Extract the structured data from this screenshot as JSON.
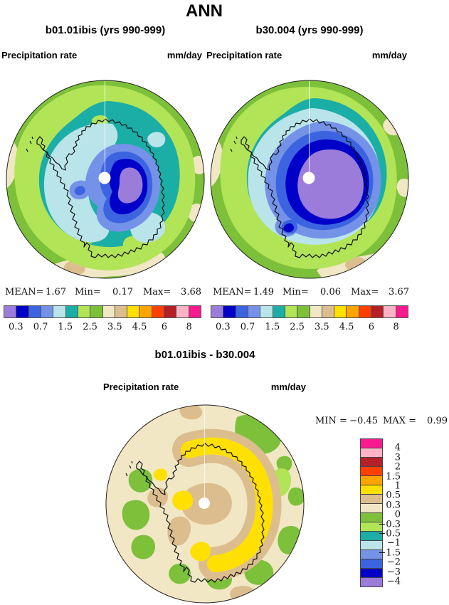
{
  "title": "ANN",
  "palette": {
    "purple": "#9B7CDB",
    "darkblue": "#0000C8",
    "royal": "#3D64E0",
    "cornflower": "#7493E8",
    "palecyan": "#B9E4EA",
    "teal": "#1BAEA6",
    "lightgreen": "#B2E457",
    "applegreen": "#7DC03A",
    "cream": "#F1E7C5",
    "tan": "#DCBE8E",
    "yellow": "#FFE000",
    "orange": "#FFA400",
    "redorange": "#FF4000",
    "brick": "#B42026",
    "pink": "#FFB3C6",
    "magenta": "#F91A8F",
    "coast": "#111111",
    "circle_edge": "#222222",
    "pole": "#ffffff"
  },
  "panels": {
    "left": {
      "header": "b01.01ibis (yrs 990-999)",
      "var_label": "Precipitation rate",
      "units": "mm/day",
      "stats": {
        "mean_label": "MEAN=",
        "mean": "1.67",
        "min_label": "Min=",
        "min": "0.17",
        "max_label": "Max=",
        "max": "3.68"
      }
    },
    "right": {
      "header": "b30.004 (yrs 990-999)",
      "var_label": "Precipitation rate",
      "units": "mm/day",
      "stats": {
        "mean_label": "MEAN=",
        "mean": "1.49",
        "min_label": "Min=",
        "min": "0.06",
        "max_label": "Max=",
        "max": "3.67"
      }
    },
    "diff": {
      "header": "b01.01ibis - b30.004",
      "var_label": "Precipitation rate",
      "units": "mm/day",
      "min_label": "MIN =",
      "min": "−0.45",
      "max_label": "MAX =",
      "max": "0.99"
    }
  },
  "colorbar": {
    "colors": [
      "purple",
      "darkblue",
      "royal",
      "cornflower",
      "palecyan",
      "teal",
      "lightgreen",
      "applegreen",
      "cream",
      "tan",
      "yellow",
      "orange",
      "redorange",
      "brick",
      "pink",
      "magenta"
    ],
    "tick_labels": [
      "0.3",
      "0.7",
      "1.5",
      "2.5",
      "3.5",
      "4.5",
      "6",
      "8"
    ],
    "tick_positions": [
      1,
      3,
      5,
      7,
      9,
      11,
      13,
      15
    ]
  },
  "colorbar_v": {
    "colors": [
      "magenta",
      "pink",
      "brick",
      "redorange",
      "orange",
      "yellow",
      "tan",
      "cream",
      "applegreen",
      "lightgreen",
      "teal",
      "palecyan",
      "cornflower",
      "royal",
      "darkblue",
      "purple"
    ],
    "labels": [
      "4",
      "3",
      "2",
      "1.5",
      "1",
      "0.5",
      "0.3",
      "0",
      "−0.3",
      "−0.5",
      "−1",
      "−1.5",
      "−2",
      "−3",
      "−4"
    ]
  },
  "chart_data": [
    {
      "type": "heatmap",
      "subtype": "south-polar-stereographic filled contour map",
      "title": "b01.01ibis (yrs 990-999)",
      "variable": "Precipitation rate",
      "units": "mm/day",
      "stats": {
        "mean": 1.67,
        "min": 0.17,
        "max": 3.68
      },
      "contour_levels": [
        0.3,
        0.5,
        0.7,
        1,
        1.5,
        2,
        2.5,
        3,
        3.5,
        4,
        4.5,
        5,
        6,
        7,
        8
      ],
      "labeled_levels": [
        0.3,
        0.7,
        1.5,
        2.5,
        3.5,
        4.5,
        6,
        8
      ],
      "legend_position": "below",
      "description": "Lowest values (purple/blue < 0.5) over interior East Antarctica around the pole; 1-2.5 mm/day (cyan/teal) over coast and Ross/Weddell sectors; 2.5-3 (greens) over ocean ring; 3-4.5 (cream/tan) patches at west and south map rim."
    },
    {
      "type": "heatmap",
      "subtype": "south-polar-stereographic filled contour map",
      "title": "b30.004 (yrs 990-999)",
      "variable": "Precipitation rate",
      "units": "mm/day",
      "stats": {
        "mean": 1.49,
        "min": 0.06,
        "max": 3.67
      },
      "contour_levels": [
        0.3,
        0.5,
        0.7,
        1,
        1.5,
        2,
        2.5,
        3,
        3.5,
        4,
        4.5,
        5,
        6,
        7,
        8
      ],
      "labeled_levels": [
        0.3,
        0.7,
        1.5,
        2.5,
        3.5,
        4.5,
        6,
        8
      ],
      "legend_position": "below",
      "description": "Same layout as left panel but with a much larger purple (<0.3 mm/day) core over the Antarctic interior ringed by dark blue."
    },
    {
      "type": "heatmap",
      "subtype": "south-polar-stereographic filled contour difference map",
      "title": "b01.01ibis - b30.004",
      "variable": "Precipitation rate",
      "units": "mm/day",
      "stats": {
        "min": -0.45,
        "max": 0.99
      },
      "contour_levels": [
        -4,
        -3,
        -2,
        -1.5,
        -1,
        -0.5,
        -0.3,
        0,
        0.3,
        0.5,
        1,
        1.5,
        2,
        3,
        4
      ],
      "legend_position": "right",
      "description": "Mostly 0-0.3 (cream) over ocean; +0.3-0.5 (tan) and +0.5-1 (yellow C-shaped band) along the Antarctic coast/interior; small negative (-0.3 to -0.5, greens) patches around the map rim."
    }
  ]
}
